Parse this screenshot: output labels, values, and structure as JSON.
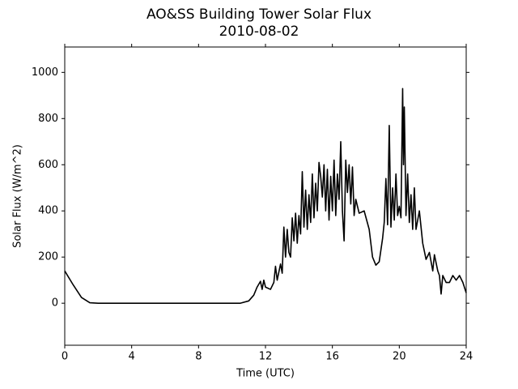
{
  "chart_data": {
    "type": "line",
    "title": "AO&SS Building Tower Solar Flux",
    "subtitle": "2010-08-02",
    "xlabel": "Time (UTC)",
    "ylabel": "Solar Flux (W/m^2)",
    "color": "#000000",
    "x": [
      0,
      0.5,
      1,
      1.5,
      2,
      4,
      6,
      8,
      10,
      10.5,
      11,
      11.3,
      11.5,
      11.7,
      11.8,
      11.9,
      12,
      12.3,
      12.5,
      12.6,
      12.7,
      12.9,
      13,
      13.1,
      13.2,
      13.3,
      13.4,
      13.5,
      13.6,
      13.7,
      13.8,
      13.9,
      14,
      14.1,
      14.2,
      14.3,
      14.4,
      14.5,
      14.6,
      14.7,
      14.8,
      14.9,
      15,
      15.1,
      15.2,
      15.3,
      15.4,
      15.5,
      15.6,
      15.7,
      15.8,
      15.9,
      16,
      16.1,
      16.2,
      16.3,
      16.4,
      16.5,
      16.6,
      16.7,
      16.8,
      16.9,
      17,
      17.1,
      17.2,
      17.3,
      17.4,
      17.6,
      17.9,
      18.2,
      18.4,
      18.6,
      18.8,
      19,
      19.1,
      19.2,
      19.3,
      19.4,
      19.5,
      19.6,
      19.7,
      19.8,
      19.9,
      20,
      20.1,
      20.2,
      20.25,
      20.3,
      20.4,
      20.5,
      20.6,
      20.7,
      20.8,
      20.9,
      21,
      21.2,
      21.4,
      21.6,
      21.8,
      22,
      22.1,
      22.3,
      22.4,
      22.5,
      22.6,
      22.8,
      23,
      23.2,
      23.4,
      23.6,
      23.8,
      24
    ],
    "values": [
      140,
      80,
      25,
      2,
      0,
      0,
      0,
      0,
      0,
      0,
      10,
      35,
      70,
      95,
      60,
      100,
      70,
      60,
      90,
      160,
      100,
      170,
      130,
      330,
      200,
      320,
      220,
      200,
      370,
      270,
      390,
      260,
      380,
      300,
      570,
      330,
      490,
      320,
      470,
      350,
      560,
      370,
      520,
      400,
      610,
      550,
      460,
      600,
      400,
      580,
      360,
      550,
      400,
      620,
      380,
      560,
      450,
      700,
      400,
      270,
      620,
      480,
      600,
      430,
      590,
      380,
      450,
      390,
      400,
      320,
      200,
      165,
      180,
      280,
      350,
      540,
      340,
      770,
      330,
      500,
      360,
      560,
      380,
      420,
      370,
      930,
      600,
      850,
      380,
      560,
      350,
      470,
      320,
      500,
      320,
      400,
      260,
      190,
      220,
      140,
      210,
      140,
      120,
      40,
      120,
      90,
      90,
      120,
      100,
      120,
      90,
      45
    ],
    "xlim": [
      0,
      24
    ],
    "xticks": [
      0,
      4,
      8,
      12,
      16,
      20,
      24
    ],
    "ylim": [
      -182,
      1110
    ],
    "yticks": [
      0,
      200,
      400,
      600,
      800,
      1000
    ],
    "grid": false
  }
}
